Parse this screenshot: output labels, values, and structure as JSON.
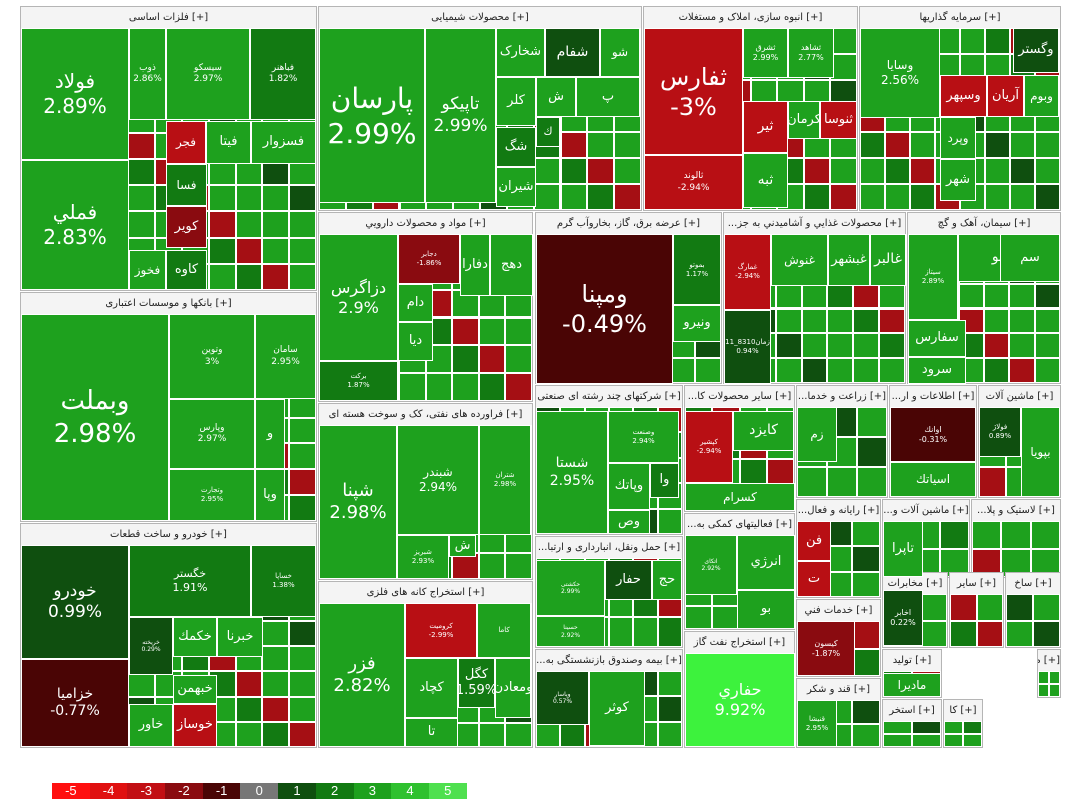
{
  "chart_data": {
    "type": "heatmap",
    "subtype": "treemap",
    "value_field": "daily change %",
    "color_scale": {
      "min": -5,
      "max": 5,
      "neutral": 0,
      "neutral_color": "#777777",
      "negative_colors": [
        "#ff1010",
        "#e01010",
        "#b80f14",
        "#8a0b10",
        "#4a0505"
      ],
      "positive_colors": [
        "#0f4f0f",
        "#127a12",
        "#1ea11e",
        "#2fc12f",
        "#4fe04f"
      ]
    },
    "legend": [
      "-5",
      "-4",
      "-3",
      "-2",
      "-1",
      "0",
      "1",
      "2",
      "3",
      "4",
      "5"
    ],
    "sectors": [
      {
        "title": "[+] فلزات اساسی",
        "tiles": [
          {
            "name": "فولاد",
            "change": 2.89,
            "label": "2.89%"
          },
          {
            "name": "فملي",
            "change": 2.83,
            "label": "2.83%"
          },
          {
            "name": "ذوب",
            "change": 2.86,
            "label": "2.86%"
          },
          {
            "name": "سیسکو",
            "change": 2.97,
            "label": "2.97%"
          },
          {
            "name": "فباهنر",
            "change": 1.82,
            "label": "1.82%"
          },
          {
            "name": "فجر",
            "change": -2.5
          },
          {
            "name": "فيتا",
            "change": 2.9
          },
          {
            "name": "فسزوار",
            "change": 2.8
          },
          {
            "name": "فسا",
            "change": 1.5
          },
          {
            "name": "کویر",
            "change": -2.0
          },
          {
            "name": "فخوز",
            "change": 2.7
          },
          {
            "name": "کاوه",
            "change": 1.2
          }
        ]
      },
      {
        "title": "[+] محصولات شیمیایی",
        "tiles": [
          {
            "name": "پارسان",
            "change": 2.99,
            "label": "2.99%"
          },
          {
            "name": "تاپیکو",
            "change": 2.99,
            "label": "2.99%"
          },
          {
            "name": "شخارک",
            "change": 2.9
          },
          {
            "name": "شفام",
            "change": 1.0
          },
          {
            "name": "شو",
            "change": 2.8
          },
          {
            "name": "کلر",
            "change": 2.8
          },
          {
            "name": "ش",
            "change": 2.6
          },
          {
            "name": "پ",
            "change": 2.5
          },
          {
            "name": "شگ",
            "change": 1.3
          },
          {
            "name": "ك",
            "change": 2.0
          },
          {
            "name": "شیران",
            "change": 2.8
          }
        ]
      },
      {
        "title": "[+] انبوه سازی، املاک و مستغلات",
        "tiles": [
          {
            "name": "ثفارس",
            "change": -3.0,
            "label": "-3%"
          },
          {
            "name": "ثالوند",
            "change": -2.94,
            "label": "-2.94%"
          },
          {
            "name": "ثشرق",
            "change": 2.99,
            "label": "2.99%"
          },
          {
            "name": "ثشاهد",
            "change": 2.77,
            "label": "2.77%"
          },
          {
            "name": "کرمان",
            "change": 2.6
          },
          {
            "name": "ثنوسا",
            "change": -2.5
          },
          {
            "name": "ثیر",
            "change": -2.3
          },
          {
            "name": "ثبه",
            "change": 2.5
          }
        ]
      },
      {
        "title": "[+] سرمایه گذاریها",
        "tiles": [
          {
            "name": "وسايا",
            "change": 2.56,
            "label": "2.56%"
          },
          {
            "name": "وگستر",
            "change": 0.9
          },
          {
            "name": "آريان",
            "change": -2.2
          },
          {
            "name": "وسپهر",
            "change": -3.0
          },
          {
            "name": "وبوم",
            "change": 2.6
          },
          {
            "name": "وپرد",
            "change": 2.5
          },
          {
            "name": "شهر",
            "change": 2.6
          }
        ]
      },
      {
        "title": "[+] مواد و محصولات دارويي",
        "tiles": [
          {
            "name": "دزاگرس",
            "change": 2.9,
            "label": "2.9%"
          },
          {
            "name": "دجابر",
            "change": -1.86,
            "label": "-1.86%"
          },
          {
            "name": "دفارا",
            "change": 2.8
          },
          {
            "name": "دهج",
            "change": 2.6
          },
          {
            "name": "دام",
            "change": 2.6
          },
          {
            "name": "ديا",
            "change": 2.5
          },
          {
            "name": "برکت",
            "change": 1.87,
            "label": "1.87%"
          }
        ]
      },
      {
        "title": "[+] عرضه برق، گاز، بخاروآب گرم",
        "tiles": [
          {
            "name": "ومپنا",
            "change": -0.49,
            "label": "-0.49%"
          },
          {
            "name": "بموتو",
            "change": 1.17,
            "label": "1.17%"
          },
          {
            "name": "ونيرو",
            "change": 2.8
          }
        ]
      },
      {
        "title": "[+] محصولات غذايي و آشاميدني به جز...",
        "tiles": [
          {
            "name": "غالبر",
            "change": 2.8
          },
          {
            "name": "غبشهر",
            "change": 2.8
          },
          {
            "name": "غنوش",
            "change": 2.7
          },
          {
            "name": "غمارگ",
            "change": -2.94,
            "label": "-2.94%"
          },
          {
            "name": "زمان8310_11",
            "change": 0.94,
            "label": "0.94%"
          }
        ]
      },
      {
        "title": "[+] سیمان، آهک و گچ",
        "tiles": [
          {
            "name": "سفانو",
            "change": 2.8
          },
          {
            "name": "سم",
            "change": 2.7
          },
          {
            "name": "سفارس",
            "change": 2.7
          },
          {
            "name": "سرود",
            "change": 2.6
          },
          {
            "name": "سيتاز",
            "change": 2.89,
            "label": "2.89%"
          }
        ]
      },
      {
        "title": "[+] بانکها و موسسات اعتباری",
        "tiles": [
          {
            "name": "وبملت",
            "change": 2.98,
            "label": "2.98%"
          },
          {
            "name": "وتوین",
            "change": 3.0,
            "label": "3%"
          },
          {
            "name": "سامان",
            "change": 2.95,
            "label": "2.95%"
          },
          {
            "name": "وپارس",
            "change": 2.97,
            "label": "2.97%"
          },
          {
            "name": "وتجارت",
            "change": 2.95,
            "label": "2.95%"
          },
          {
            "name": "و",
            "change": 2.7
          },
          {
            "name": "وپا",
            "change": 2.7
          }
        ]
      },
      {
        "title": "[+] فراورده های نفتی، کک و سوخت هسته ای",
        "tiles": [
          {
            "name": "شپنا",
            "change": 2.98,
            "label": "2.98%"
          },
          {
            "name": "شبندر",
            "change": 2.94,
            "label": "2.94%"
          },
          {
            "name": "شتران",
            "change": 2.98,
            "label": "2.98%"
          },
          {
            "name": "شبريز",
            "change": 2.93,
            "label": "2.93%"
          },
          {
            "name": "ش",
            "change": 2.7
          }
        ]
      },
      {
        "title": "[+] شرکتهای چند رشته ای صنعتی",
        "tiles": [
          {
            "name": "شستا",
            "change": 2.95,
            "label": "2.95%"
          },
          {
            "name": "وصنعت",
            "change": 2.94,
            "label": "2.94%"
          },
          {
            "name": "وپاتك",
            "change": 2.7
          },
          {
            "name": "وا",
            "change": 1.3
          },
          {
            "name": "وص",
            "change": 2.5
          }
        ]
      },
      {
        "title": "[+] سایر محصولات کا...",
        "tiles": [
          {
            "name": "کایزد",
            "change": 2.7
          },
          {
            "name": "کپشیر",
            "change": -2.94,
            "label": "-2.94%"
          },
          {
            "name": "کسرام",
            "change": 2.6
          }
        ]
      },
      {
        "title": "[+] زراعت و خدما...",
        "tiles": [
          {
            "name": "زم",
            "change": 2.6
          }
        ]
      },
      {
        "title": "[+] اطلاعات و ار...",
        "tiles": [
          {
            "name": "اوانك",
            "change": -0.31,
            "label": "-0.31%"
          },
          {
            "name": "اسیاتك",
            "change": 2.3
          }
        ]
      },
      {
        "title": "[+] ماشین آلات",
        "tiles": [
          {
            "name": "بپويا",
            "change": 2.7
          },
          {
            "name": "فولاژ",
            "change": 0.89,
            "label": "0.89%"
          }
        ]
      },
      {
        "title": "[+] خودرو و ساخت قطعات",
        "tiles": [
          {
            "name": "خودرو",
            "change": 0.99,
            "label": "0.99%"
          },
          {
            "name": "خزامیا",
            "change": -0.77,
            "label": "-0.77%"
          },
          {
            "name": "خگستر",
            "change": 1.91,
            "label": "1.91%"
          },
          {
            "name": "خساپا",
            "change": 1.38,
            "label": "1.38%"
          },
          {
            "name": "خكمك",
            "change": 2.6
          },
          {
            "name": "خبرنا",
            "change": 2.6
          },
          {
            "name": "خبهمن",
            "change": 2.6
          },
          {
            "name": "خاور",
            "change": 2.5
          },
          {
            "name": "خوساز",
            "change": -2.4
          },
          {
            "name": "خريخته",
            "change": 0.29,
            "label": "0.29%"
          }
        ]
      },
      {
        "title": "[+] استخراج کانه های فلزی",
        "tiles": [
          {
            "name": "فزر",
            "change": 2.82,
            "label": "2.82%"
          },
          {
            "name": "کروميت",
            "change": -2.99,
            "label": "-2.99%"
          },
          {
            "name": "كاما",
            "change": 2.6
          },
          {
            "name": "کچاد",
            "change": 2.6
          },
          {
            "name": "ومعادن",
            "change": 2.5
          },
          {
            "name": "تا",
            "change": 2.6
          },
          {
            "name": "كگل",
            "change": 1.59,
            "label": "1.59%"
          }
        ]
      },
      {
        "title": "[+] حمل ونقل، انبارداری و ارتبا...",
        "tiles": [
          {
            "name": "حکشتی",
            "change": 2.99,
            "label": "2.99%"
          },
          {
            "name": "حسينا",
            "change": 2.92,
            "label": "2.92%"
          },
          {
            "name": "حفار",
            "change": 0.9
          },
          {
            "name": "حج",
            "change": 2.4
          }
        ]
      },
      {
        "title": "[+] بیمه وصندوق بازنشستگی به...",
        "tiles": [
          {
            "name": "كوثر",
            "change": 2.6
          },
          {
            "name": "وپاسار",
            "change": 0.57,
            "label": "0.57%"
          }
        ]
      },
      {
        "title": "[+] فعالیتهای کمکی به...",
        "tiles": [
          {
            "name": "انرژي",
            "change": 2.6
          },
          {
            "name": "اتکای",
            "change": 2.92,
            "label": "2.92%"
          },
          {
            "name": "بو",
            "change": 2.5
          }
        ]
      },
      {
        "title": "[+] استخراج نفت گاز",
        "tiles": [
          {
            "name": "حفاري",
            "change": 9.92,
            "label": "9.92%"
          }
        ]
      },
      {
        "title": "[+] رایانه و فعال...",
        "tiles": [
          {
            "name": "فن",
            "change": -2.5
          },
          {
            "name": "ت",
            "change": -2.2
          }
        ]
      },
      {
        "title": "[+] خدمات فني",
        "tiles": [
          {
            "name": "کیسون",
            "change": -1.87,
            "label": "-1.87%"
          }
        ]
      },
      {
        "title": "[+] قند و شکر",
        "tiles": [
          {
            "name": "قنیشا",
            "change": 2.95,
            "label": "2.95%"
          }
        ]
      },
      {
        "title": "[+] ماشین آلات و...",
        "tiles": [
          {
            "name": "تاپرا",
            "change": 2.6
          }
        ]
      },
      {
        "title": "[+] لاستیک و پلا...",
        "tiles": []
      },
      {
        "title": "[+] مخابرات",
        "tiles": [
          {
            "name": "اخابر",
            "change": 0.22,
            "label": "0.22%"
          }
        ]
      },
      {
        "title": "[+] ساير",
        "tiles": []
      },
      {
        "title": "[+] ساخ",
        "tiles": []
      },
      {
        "title": "[+] تولید",
        "tiles": [
          {
            "name": "ماديرا",
            "change": 2.6
          }
        ]
      },
      {
        "title": "[+] استخر",
        "tiles": []
      },
      {
        "title": "[+] کا",
        "tiles": []
      },
      {
        "title": "[+] م",
        "tiles": []
      }
    ]
  }
}
